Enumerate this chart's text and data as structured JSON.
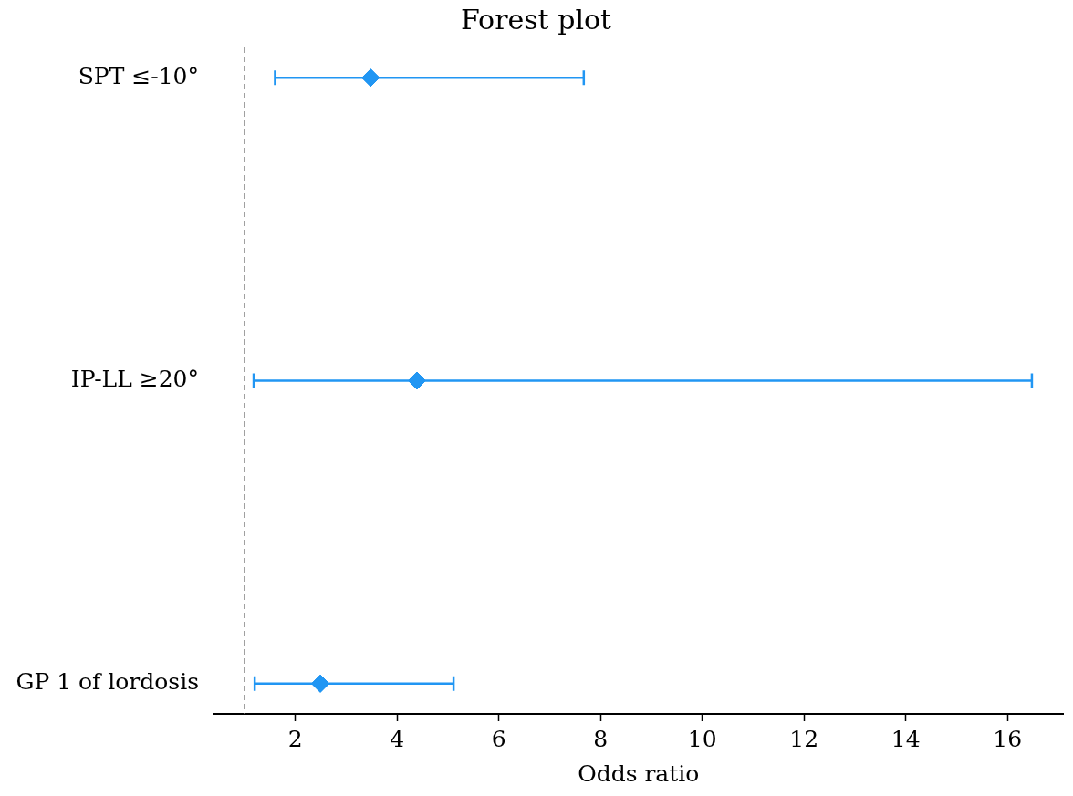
{
  "chart_data": {
    "type": "scatter",
    "title": "Forest plot",
    "xlabel": "Odds ratio",
    "orientation": "horizontal",
    "categories": [
      "SPT ≤-10°",
      "IP-LL ≥20°",
      "GP 1 of lordosis"
    ],
    "values": [
      3.48,
      4.39,
      2.49
    ],
    "color": "#2196f3",
    "errors": [
      [
        1.6,
        7.67
      ],
      [
        1.18,
        16.48
      ],
      [
        1.2,
        5.11
      ]
    ],
    "xlim": [
      0.39,
      17.1
    ],
    "xticks": [
      2,
      4,
      6,
      8,
      10,
      12,
      14,
      16
    ],
    "ref_lines": [
      {
        "axis": "x",
        "value": 1,
        "color": "#808080",
        "line_style": "dashed"
      }
    ],
    "marker": "diamond"
  }
}
